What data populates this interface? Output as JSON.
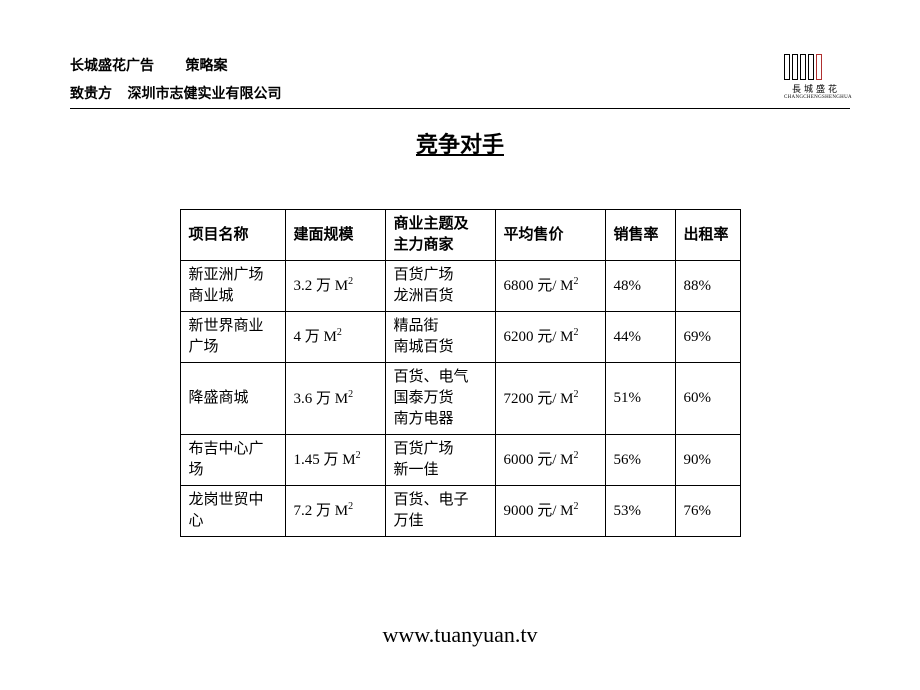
{
  "header": {
    "title1": "长城盛花广告",
    "title2": "策略案",
    "recipient_label": "致贵方",
    "recipient_company": "深圳市志健实业有限公司"
  },
  "logo": {
    "cn_text": "長城盛花",
    "en_text": "CHANGCHENGSHENGHUA"
  },
  "main_title": "竞争对手",
  "table": {
    "headers": [
      "项目名称",
      "建面规模",
      "商业主题及主力商家",
      "平均售价",
      "销售率",
      "出租率"
    ],
    "rows": [
      {
        "name_lines": [
          "新亚洲广场",
          "商业城"
        ],
        "scale_value": "3.2",
        "scale_unit_prefix": " 万 M",
        "theme_lines": [
          "百货广场",
          "龙洲百货"
        ],
        "price_value": "6800",
        "price_unit_prefix": " 元/ M",
        "sales_rate": "48%",
        "rent_rate": "88%"
      },
      {
        "name_lines": [
          "新世界商业",
          "广场"
        ],
        "scale_value": "4",
        "scale_unit_prefix": " 万 M",
        "theme_lines": [
          "精品街",
          "南城百货"
        ],
        "price_value": "6200",
        "price_unit_prefix": " 元/ M",
        "sales_rate": "44%",
        "rent_rate": "69%"
      },
      {
        "name_lines": [
          "降盛商城"
        ],
        "scale_value": "3.6",
        "scale_unit_prefix": " 万 M",
        "theme_lines": [
          "百货、电气",
          "国泰万货",
          "南方电器"
        ],
        "price_value": "7200",
        "price_unit_prefix": " 元/ M",
        "sales_rate": "51%",
        "rent_rate": "60%"
      },
      {
        "name_lines": [
          "布吉中心广",
          "场"
        ],
        "scale_value": "1.45",
        "scale_unit_prefix": " 万 M",
        "theme_lines": [
          "百货广场",
          "新一佳"
        ],
        "price_value": "6000",
        "price_unit_prefix": " 元/ M",
        "sales_rate": "56%",
        "rent_rate": "90%"
      },
      {
        "name_lines": [
          "龙岗世贸中",
          "心"
        ],
        "scale_value": "7.2",
        "scale_unit_prefix": " 万 M",
        "theme_lines": [
          "百货、电子",
          "万佳"
        ],
        "price_value": "9000",
        "price_unit_prefix": " 元/ M",
        "sales_rate": "53%",
        "rent_rate": "76%"
      }
    ]
  },
  "footer": "www.tuanyuan.tv",
  "colors": {
    "background": "#ffffff",
    "text": "#000000",
    "border": "#000000",
    "logo_red": "#b03030"
  }
}
